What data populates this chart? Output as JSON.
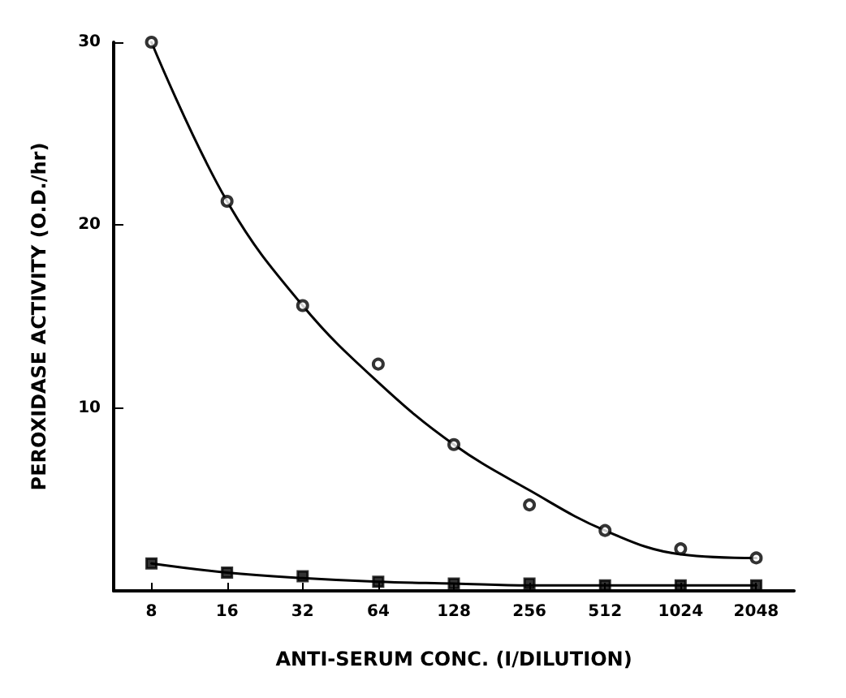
{
  "chart_data": {
    "type": "scatter",
    "xlabel": "ANTI-SERUM CONC. (I/DILUTION)",
    "ylabel": "PEROXIDASE ACTIVITY (O.D./hr)",
    "categories": [
      "8",
      "16",
      "32",
      "64",
      "128",
      "256",
      "512",
      "1024",
      "2048"
    ],
    "series": [
      {
        "marker": "circle",
        "color": "#000000",
        "values": [
          30.0,
          21.3,
          15.6,
          12.4,
          8.0,
          4.7,
          3.3,
          2.3,
          1.8
        ]
      },
      {
        "marker": "square",
        "color": "#000000",
        "values": [
          1.5,
          1.0,
          0.8,
          0.5,
          0.4,
          0.4,
          0.3,
          0.3,
          0.3
        ]
      },
      {
        "type": "line",
        "color": "#000000",
        "values": [
          30.0,
          21.3,
          15.6,
          11.4,
          8.0,
          5.5,
          3.3,
          2.0,
          1.8
        ]
      },
      {
        "type": "line",
        "color": "#000000",
        "values": [
          1.5,
          1.0,
          0.7,
          0.5,
          0.4,
          0.3,
          0.3,
          0.3,
          0.3
        ]
      }
    ],
    "ylim": [
      0,
      30
    ],
    "yticks": [
      10,
      20,
      30
    ],
    "grid": false
  }
}
